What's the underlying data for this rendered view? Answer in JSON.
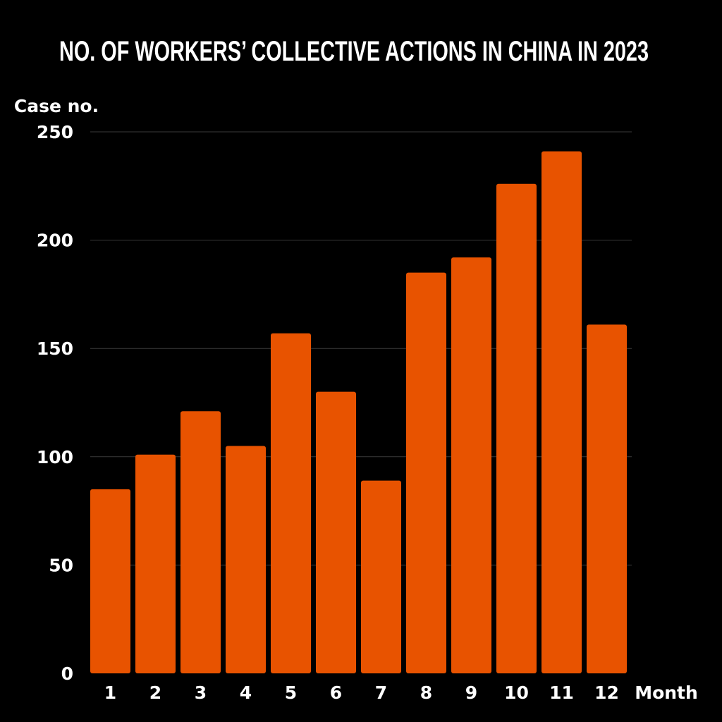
{
  "chart_data": {
    "type": "bar",
    "title": "NO. OF WORKERS’ COLLECTIVE ACTIONS IN CHINA IN 2023",
    "xlabel": "Month",
    "ylabel": "Case no.",
    "categories": [
      "1",
      "2",
      "3",
      "4",
      "5",
      "6",
      "7",
      "8",
      "9",
      "10",
      "11",
      "12"
    ],
    "values": [
      85,
      101,
      121,
      105,
      157,
      130,
      89,
      185,
      192,
      226,
      241,
      161
    ],
    "ylim": [
      0,
      250
    ],
    "yticks": [
      "0",
      "50",
      "100",
      "150",
      "200",
      "250"
    ],
    "grid": true,
    "legend": "none",
    "colors": {
      "background": "#000000",
      "bar": "#e85300",
      "text": "#ffffff",
      "grid": "#3a3a3a"
    }
  }
}
